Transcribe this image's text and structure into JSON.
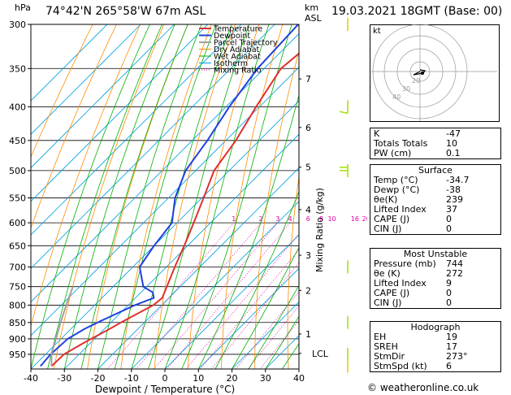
{
  "header": {
    "hpa_label": "hPa",
    "location": "74°42'N  265°58'W  67m  ASL",
    "km_label": "km",
    "asl_label": "ASL",
    "datetime": "19.03.2021  18GMT  (Base: 00)"
  },
  "chart_data": {
    "type": "line",
    "title": "74°42'N  265°58'W  67m  ASL",
    "xlabel": "Dewpoint / Temperature (°C)",
    "ylabel": "hPa",
    "y2label": "Mixing Ratio (g/kg)",
    "xlim": [
      -40,
      40
    ],
    "ylim": [
      1000,
      300
    ],
    "y_scale": "log",
    "x_ticks": [
      -40,
      -30,
      -20,
      -10,
      0,
      10,
      20,
      30,
      40
    ],
    "pressure_ticks": [
      300,
      350,
      400,
      450,
      500,
      550,
      600,
      650,
      700,
      750,
      800,
      850,
      900,
      950
    ],
    "km_ticks": [
      {
        "label": "7",
        "p": 363
      },
      {
        "label": "6",
        "p": 430
      },
      {
        "label": "5",
        "p": 494
      },
      {
        "label": "4",
        "p": 573
      },
      {
        "label": "3",
        "p": 672
      },
      {
        "label": "2",
        "p": 760
      },
      {
        "label": "1",
        "p": 885
      },
      {
        "label": "LCL",
        "p": 947
      }
    ],
    "mixing_ratio_labels": [
      "1",
      "2",
      "3",
      "4",
      "6",
      "8",
      "10",
      "16",
      "20",
      "25"
    ],
    "legend": [
      "Temperature",
      "Dewpoint",
      "Parcel Trajectory",
      "Dry Adiabat",
      "Wet Adiabat",
      "Isotherm",
      "Mixing Ratio"
    ],
    "legend_position": "top-center",
    "colors": {
      "temperature": "#e03030",
      "dewpoint": "#2040e0",
      "parcel": "#a0a0a0",
      "dry_adiabat": "#ff8c00",
      "wet_adiabat": "#00b000",
      "isotherm": "#00a0e0",
      "mixing_ratio": "#e000a0",
      "wind": "#a0e000",
      "wind_yellow": "#e8c800"
    },
    "series": [
      {
        "name": "Temperature",
        "points": [
          {
            "p": 990,
            "t": -34.7
          },
          {
            "p": 950,
            "t": -34.5
          },
          {
            "p": 920,
            "t": -32.5
          },
          {
            "p": 900,
            "t": -31.0
          },
          {
            "p": 870,
            "t": -28.5
          },
          {
            "p": 850,
            "t": -27.0
          },
          {
            "p": 800,
            "t": -22.5
          },
          {
            "p": 780,
            "t": -22.0
          },
          {
            "p": 750,
            "t": -24.0
          },
          {
            "p": 700,
            "t": -27.5
          },
          {
            "p": 650,
            "t": -31.0
          },
          {
            "p": 600,
            "t": -35.0
          },
          {
            "p": 550,
            "t": -39.5
          },
          {
            "p": 500,
            "t": -44.5
          },
          {
            "p": 450,
            "t": -47.0
          },
          {
            "p": 400,
            "t": -51.0
          },
          {
            "p": 350,
            "t": -55.0
          },
          {
            "p": 330,
            "t": -54.0
          },
          {
            "p": 300,
            "t": -53.0
          }
        ]
      },
      {
        "name": "Dewpoint",
        "points": [
          {
            "p": 990,
            "t": -38.0
          },
          {
            "p": 950,
            "t": -38.5
          },
          {
            "p": 900,
            "t": -38.0
          },
          {
            "p": 870,
            "t": -36.0
          },
          {
            "p": 850,
            "t": -34.0
          },
          {
            "p": 800,
            "t": -28.0
          },
          {
            "p": 780,
            "t": -24.5
          },
          {
            "p": 765,
            "t": -26.5
          },
          {
            "p": 750,
            "t": -31.0
          },
          {
            "p": 700,
            "t": -38.0
          },
          {
            "p": 650,
            "t": -40.0
          },
          {
            "p": 600,
            "t": -41.5
          },
          {
            "p": 550,
            "t": -48.0
          },
          {
            "p": 500,
            "t": -53.0
          },
          {
            "p": 450,
            "t": -55.5
          },
          {
            "p": 400,
            "t": -59.0
          },
          {
            "p": 350,
            "t": -62.0
          },
          {
            "p": 300,
            "t": -63.0
          }
        ]
      },
      {
        "name": "Parcel Trajectory",
        "points": [
          {
            "p": 990,
            "t": -34.7
          },
          {
            "p": 947,
            "t": -38.5
          },
          {
            "p": 900,
            "t": -41.5
          },
          {
            "p": 850,
            "t": -45.0
          },
          {
            "p": 800,
            "t": -48.5
          },
          {
            "p": 750,
            "t": -52.0
          }
        ]
      }
    ],
    "winds": [
      {
        "p": 300,
        "color": "yellow"
      },
      {
        "p": 400,
        "color": "green",
        "flag": "barb"
      },
      {
        "p": 500,
        "color": "green",
        "flag": "pennant"
      },
      {
        "p": 700,
        "color": "green"
      },
      {
        "p": 850,
        "color": "green"
      },
      {
        "p": 950,
        "color": "green"
      },
      {
        "p": 990,
        "color": "yellow"
      }
    ],
    "hodograph": {
      "label": "kt",
      "ring_labels": [
        "20",
        "30",
        "40"
      ],
      "trace": [
        [
          0,
          0
        ],
        [
          -8,
          4
        ],
        [
          4,
          2
        ],
        [
          6,
          -1
        ],
        [
          0,
          -2
        ]
      ]
    }
  },
  "indices": {
    "rows": [
      {
        "k": "K",
        "v": "-47"
      },
      {
        "k": "Totals Totals",
        "v": "10"
      },
      {
        "k": "PW (cm)",
        "v": "0.1"
      }
    ]
  },
  "surface": {
    "title": "Surface",
    "rows": [
      {
        "k": "Temp (°C)",
        "v": "-34.7"
      },
      {
        "k": "Dewp (°C)",
        "v": "-38"
      },
      {
        "k": "θe(K)",
        "v": "239"
      },
      {
        "k": "Lifted Index",
        "v": "37"
      },
      {
        "k": "CAPE (J)",
        "v": "0"
      },
      {
        "k": "CIN (J)",
        "v": "0"
      }
    ]
  },
  "unstable": {
    "title": "Most Unstable",
    "rows": [
      {
        "k": "Pressure (mb)",
        "v": "744"
      },
      {
        "k": "θe (K)",
        "v": "272"
      },
      {
        "k": "Lifted Index",
        "v": "9"
      },
      {
        "k": "CAPE (J)",
        "v": "0"
      },
      {
        "k": "CIN (J)",
        "v": "0"
      }
    ]
  },
  "hodo_table": {
    "title": "Hodograph",
    "rows": [
      {
        "k": "EH",
        "v": "19"
      },
      {
        "k": "SREH",
        "v": "17"
      },
      {
        "k": "StmDir",
        "v": "273°"
      },
      {
        "k": "StmSpd (kt)",
        "v": "6"
      }
    ]
  },
  "credit": "© weatheronline.co.uk"
}
